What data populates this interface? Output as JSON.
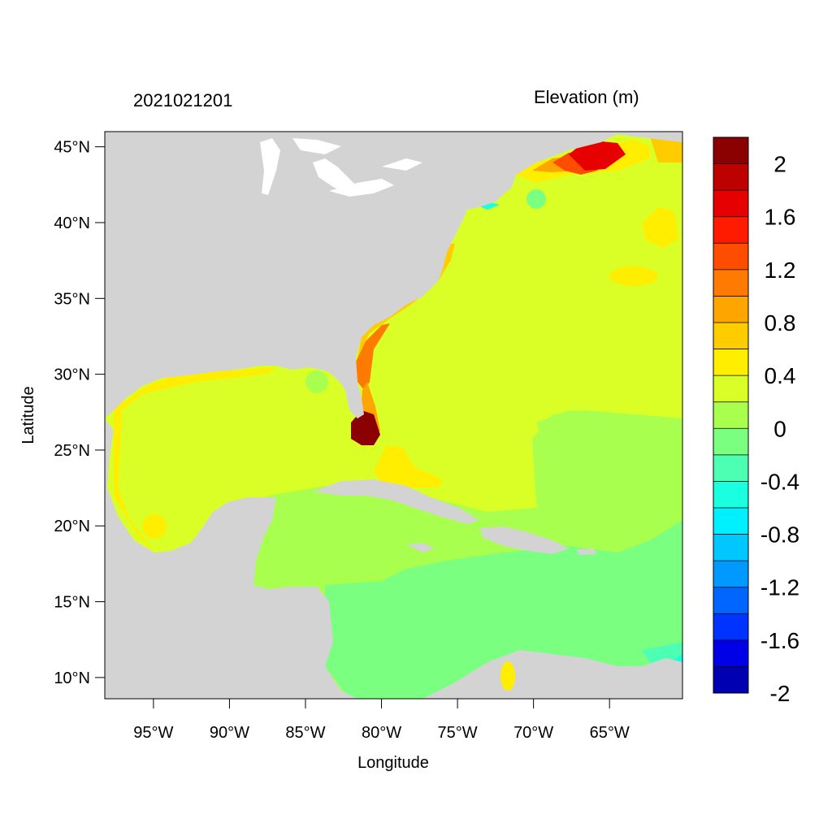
{
  "map": {
    "date_label": "2021021201",
    "variable_label": "Elevation (m)",
    "xlabel": "Longitude",
    "ylabel": "Latitude",
    "x_ticks": [
      "95°W",
      "90°W",
      "85°W",
      "80°W",
      "75°W",
      "70°W",
      "65°W"
    ],
    "y_ticks": [
      "45°N",
      "40°N",
      "35°N",
      "30°N",
      "25°N",
      "20°N",
      "15°N",
      "10°N"
    ],
    "x_tick_values": [
      -95,
      -90,
      -85,
      -80,
      -75,
      -70,
      -65
    ],
    "y_tick_values": [
      45,
      40,
      35,
      30,
      25,
      20,
      15,
      10
    ],
    "lon_range": [
      -98.2,
      -60.2
    ],
    "lat_range": [
      8.6,
      46.0
    ]
  },
  "colorbar": {
    "labels": [
      "2",
      "1.6",
      "1.2",
      "0.8",
      "0.4",
      "0",
      "-0.4",
      "-0.8",
      "-1.2",
      "-1.6",
      "-2"
    ],
    "colors": [
      "#8b0000",
      "#bd0000",
      "#e60000",
      "#ff1a00",
      "#ff4d00",
      "#ff7a00",
      "#ffa500",
      "#ffcc00",
      "#ffee00",
      "#d9ff26",
      "#a8ff4d",
      "#7aff80",
      "#4dffb3",
      "#1affe0",
      "#00f0ff",
      "#00c8ff",
      "#0099ff",
      "#0066ff",
      "#0033ff",
      "#0000e6",
      "#0000b3"
    ]
  },
  "colors": {
    "land": "#d3d3d3",
    "lakes": "#ffffff"
  }
}
